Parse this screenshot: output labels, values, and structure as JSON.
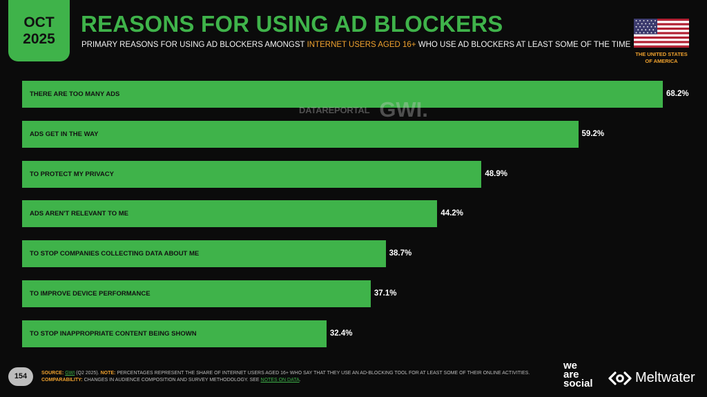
{
  "header": {
    "month": "OCT",
    "year": "2025",
    "title": "REASONS FOR USING AD BLOCKERS",
    "subtitle_pre": "PRIMARY REASONS FOR USING AD BLOCKERS AMONGST",
    "subtitle_highlight": "INTERNET USERS AGED 16+",
    "subtitle_post": "WHO USE AD BLOCKERS AT LEAST SOME OF THE TIME",
    "country_line1": "THE UNITED STATES",
    "country_line2": "OF AMERICA",
    "flag_icon": "us-flag-icon"
  },
  "watermark": {
    "datareportal": "DATAREPORTAL",
    "gwi": "GWI."
  },
  "chart_data": {
    "type": "bar",
    "orientation": "horizontal",
    "categories": [
      "THERE ARE TOO MANY ADS",
      "ADS GET IN THE WAY",
      "TO PROTECT MY PRIVACY",
      "ADS AREN'T RELEVANT TO ME",
      "TO STOP COMPANIES COLLECTING DATA ABOUT ME",
      "TO IMPROVE DEVICE PERFORMANCE",
      "TO STOP INAPPROPRIATE CONTENT BEING SHOWN"
    ],
    "values": [
      68.2,
      59.2,
      48.9,
      44.2,
      38.7,
      37.1,
      32.4
    ],
    "value_labels": [
      "68.2%",
      "59.2%",
      "48.9%",
      "44.2%",
      "38.7%",
      "37.1%",
      "32.4%"
    ],
    "title": "REASONS FOR USING AD BLOCKERS",
    "xlabel": "",
    "ylabel": "",
    "xlim": [
      0,
      72
    ],
    "grid": false,
    "bar_color": "#3fb34a"
  },
  "footer": {
    "page_number": "154",
    "source_key": "SOURCE:",
    "source_link": "GWI",
    "source_text": " (Q2 2025).",
    "note_key": " NOTE:",
    "note_text": " PERCENTAGES REPRESENT THE SHARE OF INTERNET USERS AGED 16+ WHO SAY THAT THEY USE AN AD-BLOCKING TOOL FOR AT LEAST SOME OF THEIR ONLINE ACTIVITIES.",
    "comparability_key": "COMPARABILITY:",
    "comparability_text": " CHANGES IN AUDIENCE COMPOSITION AND SURVEY METHODOLOGY. SEE ",
    "notes_link": "NOTES ON DATA",
    "comparability_end": ".",
    "brand_we": "we",
    "brand_are": "are",
    "brand_social": "social",
    "brand_meltwater": "Meltwater"
  },
  "colors": {
    "accent_green": "#3fb34a",
    "highlight_orange": "#f0a22e",
    "background": "#0b0b0b"
  }
}
